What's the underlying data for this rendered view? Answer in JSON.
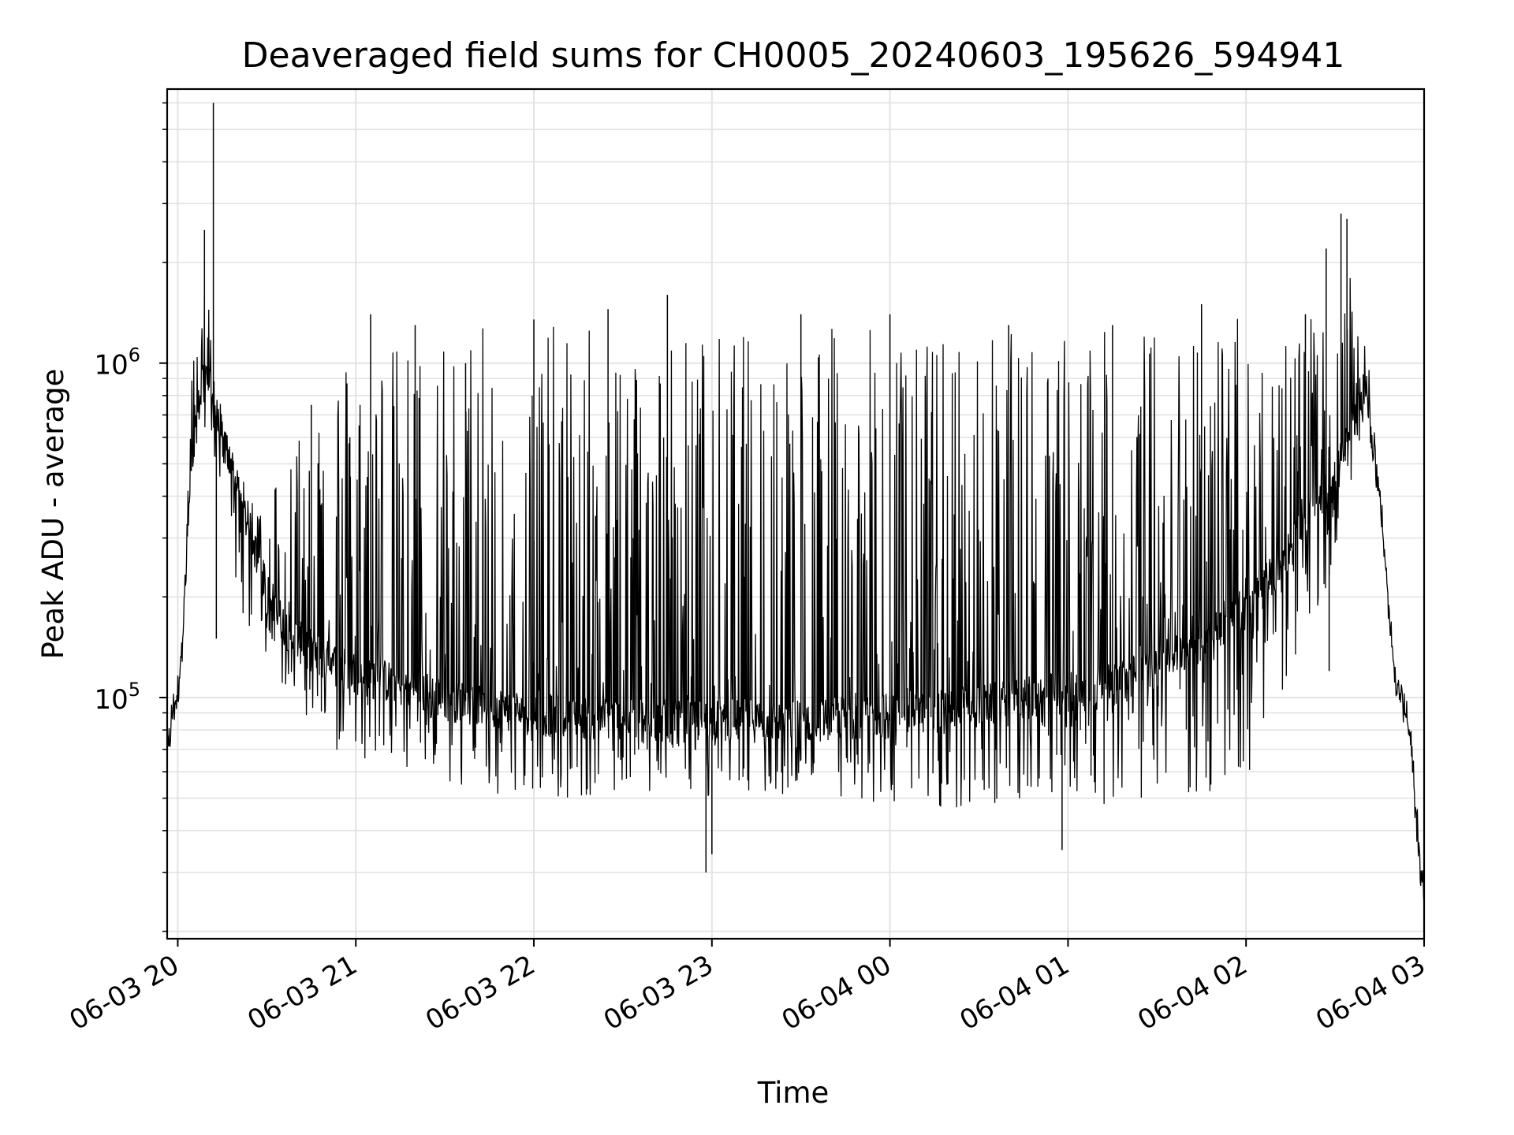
{
  "chart_data": {
    "type": "line",
    "title": "Deaveraged field sums for CH0005_20240603_195626_594941",
    "xlabel": "Time",
    "ylabel": "Peak ADU - average",
    "x_axis": "datetime",
    "xlim": [
      "2024-06-03 19:56:26",
      "2024-06-04 03:00:00"
    ],
    "x_ticks": [
      "06-03 20",
      "06-03 21",
      "06-03 22",
      "06-03 23",
      "06-04 00",
      "06-04 01",
      "06-04 02",
      "06-04 03"
    ],
    "y_scale": "log",
    "ylim": [
      19000,
      6600000
    ],
    "y_ticks": [
      {
        "value": 100000,
        "base": "10",
        "exp": "5"
      },
      {
        "value": 1000000,
        "base": "10",
        "exp": "6"
      }
    ],
    "grid": true,
    "line_color": "#000000",
    "series": [
      {
        "x": [
          "2024-06-03 19:56:26",
          "2024-06-03 19:58",
          "2024-06-03 20:00",
          "2024-06-03 20:02",
          "2024-06-03 20:04",
          "2024-06-03 20:06",
          "2024-06-03 20:08",
          "2024-06-03 20:10",
          "2024-06-03 20:12",
          "2024-06-03 20:14",
          "2024-06-03 20:16",
          "2024-06-03 20:18",
          "2024-06-03 20:20",
          "2024-06-03 20:25",
          "2024-06-03 20:30",
          "2024-06-03 20:35",
          "2024-06-03 20:40",
          "2024-06-03 20:45",
          "2024-06-03 20:50",
          "2024-06-03 21:00",
          "2024-06-03 21:15",
          "2024-06-03 21:30",
          "2024-06-03 21:45",
          "2024-06-03 22:00",
          "2024-06-03 22:15",
          "2024-06-03 22:30",
          "2024-06-03 22:45",
          "2024-06-03 23:00",
          "2024-06-03 23:15",
          "2024-06-03 23:30",
          "2024-06-03 23:45",
          "2024-06-04 00:00",
          "2024-06-04 00:15",
          "2024-06-04 00:30",
          "2024-06-04 00:45",
          "2024-06-04 01:00",
          "2024-06-04 01:15",
          "2024-06-04 01:30",
          "2024-06-04 01:45",
          "2024-06-04 02:00",
          "2024-06-04 02:10",
          "2024-06-04 02:20",
          "2024-06-04 02:30",
          "2024-06-04 02:35",
          "2024-06-04 02:40",
          "2024-06-04 02:45",
          "2024-06-04 02:50",
          "2024-06-04 02:55",
          "2024-06-04 03:00"
        ],
        "base": [
          65000,
          88000,
          105000,
          170000,
          400000,
          600000,
          900000,
          900000,
          750000,
          650000,
          550000,
          500000,
          420000,
          300000,
          210000,
          170000,
          150000,
          140000,
          130000,
          120000,
          110000,
          100000,
          95000,
          90000,
          88000,
          87000,
          86000,
          86000,
          86000,
          86000,
          88000,
          90000,
          92000,
          95000,
          100000,
          105000,
          110000,
          125000,
          150000,
          190000,
          240000,
          330000,
          450000,
          620000,
          900000,
          400000,
          120000,
          80000,
          24000
        ],
        "upper": [
          65000,
          88000,
          110000,
          190000,
          700000,
          1500000,
          1700000,
          1700000,
          1100000,
          800000,
          650000,
          550000,
          480000,
          400000,
          380000,
          600000,
          700000,
          900000,
          1000000,
          1200000,
          1150000,
          1200000,
          1300000,
          1300000,
          1300000,
          1300000,
          1300000,
          1250000,
          1250000,
          1300000,
          1300000,
          1250000,
          1250000,
          1250000,
          1250000,
          1250000,
          1250000,
          1300000,
          1400000,
          1400000,
          1400000,
          1400000,
          1200000,
          1800000,
          1600000,
          400000,
          120000,
          80000,
          24000
        ],
        "lower": [
          65000,
          88000,
          100000,
          160000,
          380000,
          550000,
          700000,
          600000,
          450000,
          380000,
          320000,
          250000,
          200000,
          150000,
          130000,
          110000,
          90000,
          80000,
          70000,
          65000,
          60000,
          55000,
          52000,
          50000,
          50000,
          50000,
          50000,
          50000,
          49000,
          48000,
          47000,
          46000,
          46000,
          46000,
          46000,
          47000,
          48000,
          49000,
          50000,
          55000,
          90000,
          150000,
          250000,
          400000,
          700000,
          380000,
          110000,
          75000,
          24000
        ],
        "spikes": [
          {
            "x": "2024-06-03 20:12",
            "y": 6000000
          },
          {
            "x": "2024-06-03 20:09",
            "y": 2500000
          },
          {
            "x": "2024-06-03 20:13",
            "y": 150000
          },
          {
            "x": "2024-06-03 20:45",
            "y": 750000
          },
          {
            "x": "2024-06-03 20:58",
            "y": 600000
          },
          {
            "x": "2024-06-03 21:05",
            "y": 1400000
          },
          {
            "x": "2024-06-03 21:20",
            "y": 1300000
          },
          {
            "x": "2024-06-03 21:37",
            "y": 1000000
          },
          {
            "x": "2024-06-03 22:00",
            "y": 1350000
          },
          {
            "x": "2024-06-03 22:25",
            "y": 1450000
          },
          {
            "x": "2024-06-03 22:45",
            "y": 1600000
          },
          {
            "x": "2024-06-03 23:00",
            "y": 34000
          },
          {
            "x": "2024-06-03 22:58",
            "y": 30000
          },
          {
            "x": "2024-06-03 23:30",
            "y": 1400000
          },
          {
            "x": "2024-06-04 00:00",
            "y": 1400000
          },
          {
            "x": "2024-06-04 00:40",
            "y": 1300000
          },
          {
            "x": "2024-06-04 00:58",
            "y": 35000
          },
          {
            "x": "2024-06-04 01:15",
            "y": 1300000
          },
          {
            "x": "2024-06-04 01:45",
            "y": 1500000
          },
          {
            "x": "2024-06-04 02:20",
            "y": 1400000
          },
          {
            "x": "2024-06-04 02:27",
            "y": 2200000
          },
          {
            "x": "2024-06-04 02:32",
            "y": 2800000
          },
          {
            "x": "2024-06-04 02:34",
            "y": 2700000
          },
          {
            "x": "2024-06-04 02:28",
            "y": 120000
          }
        ]
      }
    ]
  }
}
